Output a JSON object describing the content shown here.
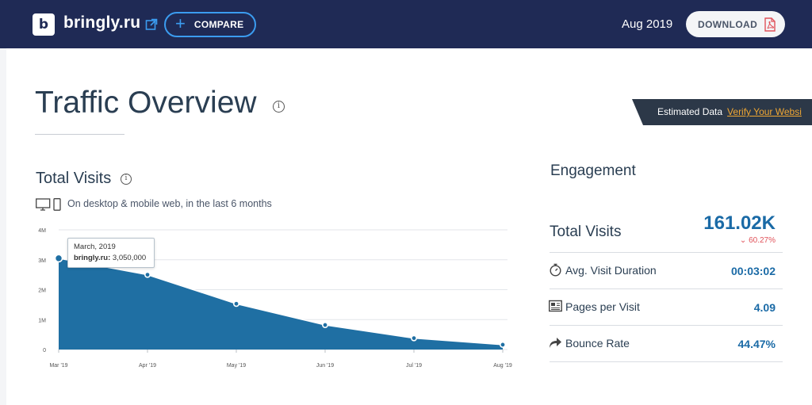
{
  "header": {
    "logo_letter": "b",
    "domain": "bringly.ru",
    "compare_label": "COMPARE",
    "date": "Aug 2019",
    "download_label": "DOWNLOAD"
  },
  "overview": {
    "title": "Traffic Overview",
    "estimated_label": "Estimated Data",
    "verify_link": "Verify Your Websi"
  },
  "total_visits": {
    "title": "Total Visits",
    "description": "On desktop & mobile web, in the last 6 months",
    "tooltip": {
      "date": "March, 2019",
      "site": "bringly.ru:",
      "value": "3,050,000"
    }
  },
  "chart_data": {
    "type": "area",
    "categories": [
      "Mar '19",
      "Apr '19",
      "May '19",
      "Jun '19",
      "Jul '19",
      "Aug '19"
    ],
    "values": [
      3050000,
      2500000,
      1530000,
      820000,
      380000,
      161020
    ],
    "y_ticks": [
      "0",
      "1M",
      "2M",
      "3M",
      "4M"
    ],
    "ylim": [
      0,
      4000000
    ],
    "grid": true,
    "color": "#1f6fa3"
  },
  "engagement": {
    "title": "Engagement",
    "total_visits_label": "Total Visits",
    "total_visits_value": "161.02K",
    "total_visits_change": "60.27%",
    "metrics": [
      {
        "icon": "stopwatch-icon",
        "label": "Avg. Visit Duration",
        "value": "00:03:02"
      },
      {
        "icon": "pages-icon",
        "label": "Pages per Visit",
        "value": "4.09"
      },
      {
        "icon": "bounce-arrow-icon",
        "label": "Bounce Rate",
        "value": "44.47%"
      }
    ]
  },
  "colors": {
    "header_bg": "#1f2a55",
    "accent_blue": "#3b9cf0",
    "value_blue": "#1a6aa6",
    "negative_red": "#e0525a",
    "link_orange": "#f0a733",
    "banner_bg": "#2c3848"
  }
}
